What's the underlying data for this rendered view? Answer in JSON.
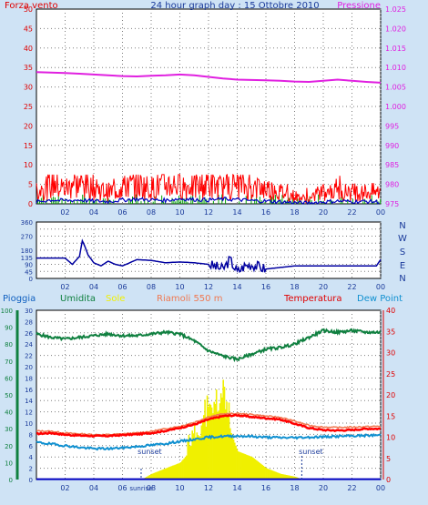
{
  "top_panel": {
    "left_label": "Forza vento",
    "title": "24 hour graph day : 15 Ottobre 2010",
    "right_label": "Pressione",
    "colors": {
      "left_label": "#e00000",
      "title": "#1a3a9a",
      "right_label": "#e020e0"
    }
  },
  "middle_panel": {
    "compass": [
      "N",
      "W",
      "S",
      "E",
      "N"
    ]
  },
  "bottom_panel": {
    "legend": [
      {
        "text": "Pioggia",
        "color": "#1060c0"
      },
      {
        "text": "Umidita",
        "color": "#108040"
      },
      {
        "text": "Sole",
        "color": "#f0f000"
      },
      {
        "text": "Riamoli 550 m",
        "color": "#f07850"
      },
      {
        "text": "Temperatura",
        "color": "#e00000"
      },
      {
        "text": "Dew Point",
        "color": "#1090d0"
      }
    ],
    "annotations": {
      "sunrise": "sunrise",
      "sunset": "sunset"
    }
  },
  "chart_data": [
    {
      "type": "line",
      "title": "24 hour graph day : 15 Ottobre 2010",
      "x_ticks": [
        "02",
        "04",
        "06",
        "08",
        "10",
        "12",
        "14",
        "16",
        "18",
        "20",
        "22",
        "00"
      ],
      "x_range_hours": [
        0,
        24
      ],
      "y_left": {
        "label": "Forza vento",
        "ticks": [
          0,
          5,
          10,
          15,
          20,
          25,
          30,
          35,
          40,
          45,
          50
        ],
        "range": [
          0,
          50
        ]
      },
      "y_right": {
        "label": "Pressione",
        "ticks": [
          975,
          980,
          985,
          990,
          995,
          1000,
          1005,
          1010,
          1015,
          1020,
          1025
        ],
        "range": [
          975,
          1025
        ]
      },
      "grid": true,
      "series": [
        {
          "name": "Pressione",
          "axis": "right",
          "color": "#e020e0",
          "x": [
            0,
            1,
            2,
            3,
            4,
            5,
            6,
            7,
            8,
            9,
            10,
            11,
            12,
            13,
            14,
            15,
            16,
            17,
            18,
            19,
            20,
            21,
            22,
            23,
            24
          ],
          "values": [
            1008.8,
            1008.7,
            1008.6,
            1008.4,
            1008.2,
            1008.0,
            1007.8,
            1007.7,
            1007.9,
            1008.0,
            1008.2,
            1008.0,
            1007.6,
            1007.2,
            1006.9,
            1006.8,
            1006.7,
            1006.6,
            1006.4,
            1006.3,
            1006.6,
            1006.9,
            1006.6,
            1006.3,
            1006.1
          ]
        },
        {
          "name": "Forza vento (raffica)",
          "axis": "left",
          "color": "#ff0000",
          "x": [
            0,
            1,
            2,
            3,
            4,
            5,
            6,
            7,
            8,
            9,
            10,
            11,
            12,
            13,
            14,
            15,
            16,
            17,
            18,
            19,
            20,
            21,
            22,
            23,
            24
          ],
          "values": [
            3,
            5,
            4,
            5,
            4,
            3,
            4,
            5,
            4,
            5,
            5,
            4,
            5,
            4,
            5,
            4,
            4,
            3,
            2,
            1,
            3,
            3,
            3,
            3,
            3
          ]
        },
        {
          "name": "Forza vento (media)",
          "axis": "left",
          "color": "#0000c0",
          "x": [
            0,
            1,
            2,
            3,
            4,
            5,
            6,
            7,
            8,
            9,
            10,
            11,
            12,
            13,
            14,
            15,
            16,
            17,
            18,
            19,
            20,
            21,
            22,
            23,
            24
          ],
          "values": [
            0.5,
            1,
            0.8,
            1,
            0.7,
            0.6,
            1,
            1.2,
            1,
            0.9,
            1.3,
            1.1,
            1,
            1.2,
            1.1,
            0.8,
            0.7,
            0.5,
            0.3,
            0.2,
            0.5,
            0.7,
            0.6,
            0.6,
            0.5
          ]
        }
      ]
    },
    {
      "type": "line",
      "x_ticks": [
        "02",
        "04",
        "06",
        "08",
        "10",
        "12",
        "14",
        "16",
        "18",
        "20",
        "22",
        "00"
      ],
      "y_left": {
        "ticks": [
          0,
          45,
          90,
          135,
          180,
          225,
          270,
          315,
          360
        ],
        "range": [
          0,
          360
        ]
      },
      "y_right_labels": [
        "N",
        "W",
        "S",
        "E",
        "N"
      ],
      "grid": true,
      "series": [
        {
          "name": "Direzione vento",
          "color": "#0000a0",
          "x": [
            0,
            1,
            2,
            2.5,
            3,
            3.2,
            3.4,
            3.6,
            4,
            4.5,
            5,
            5.5,
            6,
            7,
            8,
            9,
            10,
            11,
            12,
            13,
            13.5,
            14,
            14.5,
            15,
            16,
            17,
            18,
            19,
            20,
            21,
            22,
            23,
            23.7,
            24
          ],
          "values": [
            130,
            130,
            130,
            90,
            140,
            240,
            200,
            150,
            100,
            80,
            110,
            90,
            80,
            120,
            115,
            100,
            105,
            100,
            90,
            60,
            120,
            40,
            80,
            90,
            60,
            70,
            80,
            80,
            80,
            80,
            80,
            80,
            80,
            120
          ]
        }
      ]
    },
    {
      "type": "line",
      "x_ticks": [
        "02",
        "04",
        "06",
        "08",
        "10",
        "12",
        "14",
        "16",
        "18",
        "20",
        "22",
        "00"
      ],
      "y_axes": [
        {
          "label": "Pioggia",
          "ticks": [
            0,
            10,
            20,
            30,
            40,
            50,
            60,
            70,
            80,
            90,
            100
          ],
          "range": [
            0,
            100
          ]
        },
        {
          "label": "Umidita",
          "ticks": [
            0,
            2,
            4,
            6,
            8,
            10,
            12,
            14,
            16,
            18,
            20,
            22,
            24,
            26,
            28,
            30
          ],
          "range": [
            0,
            30
          ]
        },
        {
          "label": "Temperatura",
          "ticks": [
            0,
            5,
            10,
            15,
            20,
            25,
            30,
            35,
            40
          ],
          "range": [
            0,
            40
          ]
        }
      ],
      "grid": true,
      "annotations": [
        {
          "text": "sunrise",
          "x": 7.3
        },
        {
          "text": "sunset",
          "x": 18.5
        }
      ],
      "series": [
        {
          "name": "Umidita",
          "axis": "pioggia",
          "color": "#108040",
          "x": [
            0,
            1,
            2,
            3,
            4,
            5,
            6,
            7,
            8,
            9,
            10,
            11,
            12,
            13,
            14,
            15,
            16,
            17,
            18,
            19,
            20,
            21,
            22,
            23,
            24
          ],
          "values": [
            86,
            84,
            83,
            84,
            85,
            86,
            85,
            85,
            86,
            87,
            86,
            82,
            76,
            73,
            71,
            74,
            77,
            78,
            80,
            84,
            88,
            87,
            88,
            87,
            87
          ]
        },
        {
          "name": "Sole",
          "axis": "umidita",
          "color": "#f0f000",
          "x": [
            7.3,
            8,
            9,
            10,
            11,
            12,
            13,
            14,
            15,
            16,
            17,
            18,
            18.5
          ],
          "values": [
            0,
            1,
            2,
            3,
            6,
            10,
            12,
            5,
            4,
            2,
            1,
            0.5,
            0
          ]
        },
        {
          "name": "Riamoli 550 m",
          "axis": "temperatura",
          "color": "#f07850",
          "x": [
            0,
            1,
            2,
            3,
            4,
            5,
            6,
            7,
            8,
            9,
            10,
            11,
            12,
            13,
            14,
            15,
            16,
            17,
            18,
            19,
            20,
            21,
            22,
            23,
            24
          ],
          "values": [
            11.5,
            11.4,
            11.0,
            10.8,
            10.6,
            10.6,
            10.8,
            11.0,
            11.4,
            12.0,
            12.6,
            13.5,
            14.8,
            15.5,
            15.6,
            15.4,
            15.0,
            14.7,
            13.8,
            12.8,
            12.4,
            12.3,
            12.4,
            12.5,
            12.6
          ]
        },
        {
          "name": "Temperatura",
          "axis": "temperatura",
          "color": "#ff0000",
          "x": [
            0,
            1,
            2,
            3,
            4,
            5,
            6,
            7,
            8,
            9,
            10,
            11,
            12,
            13,
            14,
            15,
            16,
            17,
            18,
            19,
            20,
            21,
            22,
            23,
            24
          ],
          "values": [
            10.8,
            11.0,
            10.6,
            10.4,
            10.3,
            10.3,
            10.5,
            10.7,
            11.0,
            11.5,
            12.2,
            13.0,
            14.2,
            15.0,
            15.2,
            14.8,
            14.5,
            14.2,
            13.2,
            12.2,
            11.7,
            11.6,
            11.7,
            12.0,
            12.0
          ]
        },
        {
          "name": "Dew Point",
          "axis": "temperatura",
          "color": "#1090d0",
          "x": [
            0,
            1,
            2,
            3,
            4,
            5,
            6,
            7,
            8,
            9,
            10,
            11,
            12,
            13,
            14,
            15,
            16,
            17,
            18,
            19,
            20,
            21,
            22,
            23,
            24
          ],
          "values": [
            8.8,
            8.4,
            8.0,
            7.6,
            7.3,
            7.3,
            7.5,
            7.8,
            8.1,
            8.5,
            9.0,
            9.5,
            10.0,
            10.2,
            10.3,
            10.2,
            10.0,
            9.9,
            9.9,
            10.0,
            10.1,
            10.2,
            10.3,
            10.4,
            10.5
          ]
        },
        {
          "name": "Pioggia",
          "axis": "pioggia",
          "color": "#0000c0",
          "x": [
            0,
            24
          ],
          "values": [
            0.2,
            0.2
          ]
        }
      ]
    }
  ]
}
